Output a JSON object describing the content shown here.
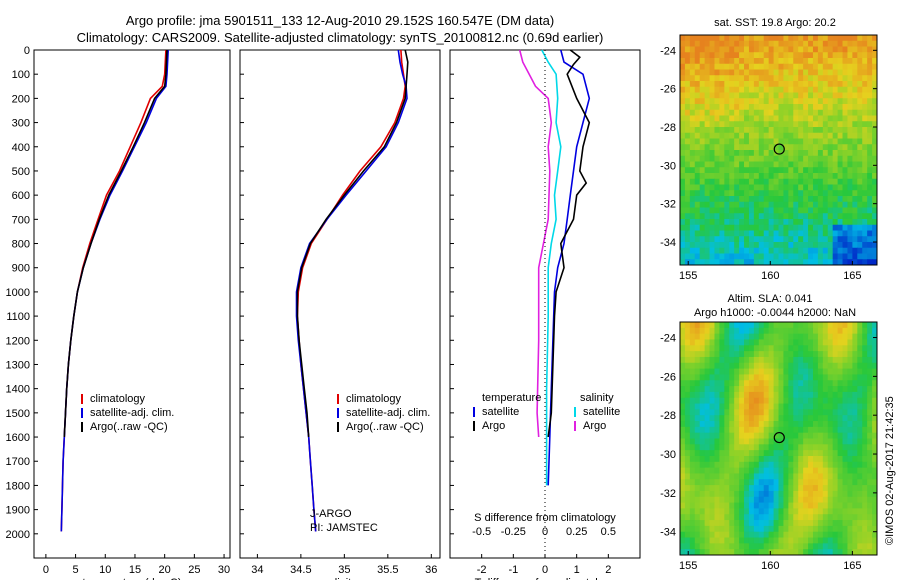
{
  "header": {
    "title_line1": "Argo profile: jma 5901511_133 12-Aug-2010 29.152S 160.547E (DM data)",
    "title_line2": "Climatology: CARS2009. Satellite-adjusted climatology: synTS_20100812.nc (0.69d earlier)"
  },
  "footer_stamp": "©IMOS 02-Aug-2017 21:42:35",
  "colors": {
    "climatology": "#e00000",
    "satellite": "#0000e0",
    "argo": "#000000",
    "sal_sat": "#00d8e8",
    "sal_argo": "#e020e0"
  },
  "chart_data": [
    {
      "type": "line",
      "id": "temperature",
      "xlabel": "temperature (deg C)",
      "ylabel": "",
      "xlim": [
        -2,
        31
      ],
      "ylim": [
        2100,
        0
      ],
      "xticks": [
        0,
        5,
        10,
        15,
        20,
        25,
        30
      ],
      "yticks": [
        0,
        100,
        200,
        300,
        400,
        500,
        600,
        700,
        800,
        900,
        1000,
        1100,
        1200,
        1300,
        1400,
        1500,
        1600,
        1700,
        1800,
        1900,
        2000
      ],
      "legend": [
        "climatology",
        "satellite-adj. clim.",
        "Argo(..raw -QC)"
      ],
      "series": [
        {
          "name": "climatology",
          "color": "#e00000",
          "points": [
            [
              20.2,
              0
            ],
            [
              20.1,
              50
            ],
            [
              20.0,
              100
            ],
            [
              19.6,
              150
            ],
            [
              17.6,
              200
            ],
            [
              16.0,
              300
            ],
            [
              14.2,
              400
            ],
            [
              12.4,
              500
            ],
            [
              10.2,
              600
            ],
            [
              8.8,
              700
            ],
            [
              7.4,
              800
            ],
            [
              6.2,
              900
            ],
            [
              5.3,
              1000
            ],
            [
              4.7,
              1100
            ],
            [
              4.2,
              1200
            ],
            [
              3.8,
              1300
            ],
            [
              3.5,
              1400
            ],
            [
              3.3,
              1500
            ],
            [
              3.1,
              1600
            ],
            [
              2.9,
              1700
            ],
            [
              2.8,
              1800
            ],
            [
              2.7,
              1900
            ],
            [
              2.6,
              1990
            ]
          ]
        },
        {
          "name": "satellite-adj. clim.",
          "color": "#0000e0",
          "points": [
            [
              20.6,
              0
            ],
            [
              20.5,
              50
            ],
            [
              20.4,
              100
            ],
            [
              20.2,
              150
            ],
            [
              18.6,
              200
            ],
            [
              16.9,
              300
            ],
            [
              14.9,
              400
            ],
            [
              12.9,
              500
            ],
            [
              10.8,
              600
            ],
            [
              9.1,
              700
            ],
            [
              7.6,
              800
            ],
            [
              6.3,
              900
            ],
            [
              5.3,
              1000
            ],
            [
              4.7,
              1100
            ],
            [
              4.2,
              1200
            ],
            [
              3.8,
              1300
            ],
            [
              3.5,
              1400
            ],
            [
              3.3,
              1500
            ],
            [
              3.1,
              1600
            ],
            [
              2.9,
              1700
            ],
            [
              2.8,
              1800
            ],
            [
              2.7,
              1900
            ],
            [
              2.6,
              1990
            ]
          ]
        },
        {
          "name": "Argo(..raw -QC)",
          "color": "#000000",
          "points": [
            [
              20.4,
              0
            ],
            [
              20.3,
              50
            ],
            [
              20.2,
              100
            ],
            [
              20.0,
              150
            ],
            [
              18.3,
              200
            ],
            [
              16.6,
              300
            ],
            [
              14.7,
              400
            ],
            [
              12.7,
              500
            ],
            [
              10.6,
              600
            ],
            [
              9.0,
              700
            ],
            [
              7.6,
              800
            ],
            [
              6.3,
              900
            ],
            [
              5.3,
              1000
            ],
            [
              4.7,
              1100
            ],
            [
              4.2,
              1200
            ],
            [
              3.8,
              1300
            ],
            [
              3.5,
              1400
            ],
            [
              3.3,
              1500
            ],
            [
              3.1,
              1600
            ]
          ]
        }
      ]
    },
    {
      "type": "line",
      "id": "salinity",
      "xlabel": "salinity",
      "ylabel": "",
      "xlim": [
        33.8,
        36.1
      ],
      "ylim": [
        2100,
        0
      ],
      "xticks": [
        34,
        34.5,
        35,
        35.5,
        36
      ],
      "legend": [
        "climatology",
        "satellite-adj. clim.",
        "Argo(..raw -QC)"
      ],
      "annotations": [
        "J-ARGO",
        "PI: JAMSTEC"
      ],
      "series": [
        {
          "name": "climatology",
          "color": "#e00000",
          "points": [
            [
              35.65,
              0
            ],
            [
              35.66,
              50
            ],
            [
              35.68,
              100
            ],
            [
              35.7,
              150
            ],
            [
              35.68,
              200
            ],
            [
              35.58,
              300
            ],
            [
              35.42,
              400
            ],
            [
              35.18,
              500
            ],
            [
              34.98,
              600
            ],
            [
              34.8,
              700
            ],
            [
              34.62,
              800
            ],
            [
              34.52,
              900
            ],
            [
              34.47,
              1000
            ],
            [
              34.46,
              1100
            ],
            [
              34.48,
              1200
            ],
            [
              34.5,
              1300
            ],
            [
              34.53,
              1400
            ],
            [
              34.56,
              1500
            ],
            [
              34.59,
              1600
            ],
            [
              34.61,
              1700
            ],
            [
              34.63,
              1800
            ],
            [
              34.65,
              1900
            ],
            [
              34.67,
              1990
            ]
          ]
        },
        {
          "name": "satellite-adj. clim.",
          "color": "#0000e0",
          "points": [
            [
              35.62,
              0
            ],
            [
              35.64,
              50
            ],
            [
              35.67,
              100
            ],
            [
              35.71,
              150
            ],
            [
              35.72,
              200
            ],
            [
              35.62,
              300
            ],
            [
              35.48,
              400
            ],
            [
              35.25,
              500
            ],
            [
              35.02,
              600
            ],
            [
              34.8,
              700
            ],
            [
              34.6,
              800
            ],
            [
              34.5,
              900
            ],
            [
              34.45,
              1000
            ],
            [
              34.45,
              1100
            ],
            [
              34.47,
              1200
            ],
            [
              34.5,
              1300
            ],
            [
              34.53,
              1400
            ],
            [
              34.56,
              1500
            ],
            [
              34.59,
              1600
            ],
            [
              34.61,
              1700
            ],
            [
              34.63,
              1800
            ],
            [
              34.65,
              1900
            ],
            [
              34.67,
              1990
            ]
          ]
        },
        {
          "name": "Argo(..raw -QC)",
          "color": "#000000",
          "points": [
            [
              35.7,
              0
            ],
            [
              35.73,
              50
            ],
            [
              35.72,
              100
            ],
            [
              35.71,
              150
            ],
            [
              35.7,
              200
            ],
            [
              35.6,
              300
            ],
            [
              35.46,
              400
            ],
            [
              35.22,
              500
            ],
            [
              35.0,
              600
            ],
            [
              34.79,
              700
            ],
            [
              34.61,
              800
            ],
            [
              34.51,
              900
            ],
            [
              34.46,
              1000
            ],
            [
              34.46,
              1100
            ],
            [
              34.48,
              1200
            ],
            [
              34.51,
              1300
            ],
            [
              34.54,
              1400
            ],
            [
              34.57,
              1500
            ],
            [
              34.59,
              1600
            ]
          ]
        }
      ]
    },
    {
      "type": "line",
      "id": "difference",
      "xlabel": "T difference from climatology",
      "xlabel2": "S difference from climatology",
      "xlim": [
        -3,
        3
      ],
      "ylim": [
        2100,
        0
      ],
      "xticks": [
        -2,
        -1,
        0,
        1,
        2
      ],
      "xticks_s": [
        "-0.5",
        "-0.25",
        "0",
        "0.25",
        "0.5"
      ],
      "legend_titles": [
        "temperature",
        "salinity"
      ],
      "legend": [
        "satellite",
        "Argo",
        "satellite",
        "Argo"
      ],
      "series": [
        {
          "name": "satellite",
          "color": "#0000e0",
          "points": [
            [
              0.5,
              0
            ],
            [
              0.6,
              50
            ],
            [
              1.2,
              100
            ],
            [
              1.4,
              200
            ],
            [
              1.2,
              300
            ],
            [
              1.0,
              400
            ],
            [
              0.9,
              500
            ],
            [
              0.8,
              600
            ],
            [
              0.7,
              700
            ],
            [
              0.6,
              800
            ],
            [
              0.4,
              900
            ],
            [
              0.3,
              1000
            ],
            [
              0.25,
              1200
            ],
            [
              0.2,
              1400
            ],
            [
              0.15,
              1600
            ],
            [
              0.1,
              1800
            ]
          ]
        },
        {
          "name": "Argo",
          "color": "#000000",
          "points": [
            [
              0.8,
              0
            ],
            [
              1.1,
              30
            ],
            [
              0.9,
              60
            ],
            [
              0.7,
              100
            ],
            [
              1.0,
              200
            ],
            [
              1.4,
              300
            ],
            [
              1.2,
              400
            ],
            [
              1.1,
              500
            ],
            [
              1.3,
              550
            ],
            [
              1.0,
              600
            ],
            [
              0.9,
              700
            ],
            [
              0.5,
              800
            ],
            [
              0.6,
              900
            ],
            [
              0.35,
              1000
            ],
            [
              0.3,
              1100
            ],
            [
              0.25,
              1300
            ],
            [
              0.2,
              1500
            ],
            [
              0.1,
              1600
            ]
          ]
        },
        {
          "name": "satellite",
          "color": "#00d8e8",
          "points": [
            [
              -0.1,
              0
            ],
            [
              0.1,
              50
            ],
            [
              0.35,
              100
            ],
            [
              0.4,
              200
            ],
            [
              0.35,
              300
            ],
            [
              0.5,
              400
            ],
            [
              0.4,
              500
            ],
            [
              0.3,
              600
            ],
            [
              0.35,
              700
            ],
            [
              0.2,
              800
            ],
            [
              0.1,
              900
            ],
            [
              0.1,
              1100
            ],
            [
              0.05,
              1400
            ],
            [
              0.05,
              1800
            ]
          ]
        },
        {
          "name": "Argo",
          "color": "#e020e0",
          "points": [
            [
              -0.8,
              0
            ],
            [
              -0.7,
              50
            ],
            [
              -0.5,
              100
            ],
            [
              -0.3,
              150
            ],
            [
              0.1,
              200
            ],
            [
              0.2,
              300
            ],
            [
              0.1,
              400
            ],
            [
              0.15,
              500
            ],
            [
              0.1,
              700
            ],
            [
              -0.2,
              900
            ],
            [
              -0.2,
              1200
            ],
            [
              -0.25,
              1500
            ],
            [
              -0.2,
              1600
            ]
          ]
        }
      ]
    },
    {
      "type": "heatmap",
      "id": "sst_map",
      "title": "sat. SST: 19.8  Argo: 20.2",
      "xlim": [
        154.5,
        166.5
      ],
      "ylim": [
        -35.2,
        -23.2
      ],
      "xticks": [
        155,
        160,
        165
      ],
      "yticks": [
        -24,
        -26,
        -28,
        -30,
        -32,
        -34
      ],
      "marker": {
        "lon": 160.547,
        "lat": -29.152
      }
    },
    {
      "type": "heatmap",
      "id": "sla_map",
      "title_line1": "Altim. SLA: 0.041",
      "title_line2": "Argo h1000: -0.0044  h2000: NaN",
      "xlim": [
        154.5,
        166.5
      ],
      "ylim": [
        -35.2,
        -23.2
      ],
      "xticks": [
        155,
        160,
        165
      ],
      "yticks": [
        -24,
        -26,
        -28,
        -30,
        -32,
        -34
      ],
      "marker": {
        "lon": 160.547,
        "lat": -29.152
      }
    }
  ]
}
